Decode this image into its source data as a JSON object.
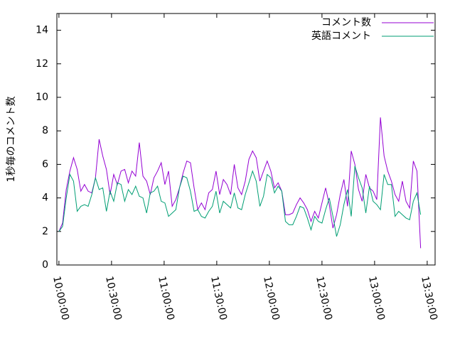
{
  "chart_data": {
    "type": "line",
    "y_label": "1秒毎のコメント数",
    "x": [
      36000,
      36125,
      36250,
      36375,
      36500,
      36625,
      36750,
      36875,
      37000,
      37125,
      37250,
      37375,
      37500,
      37625,
      37750,
      37875,
      38000,
      38125,
      38250,
      38375,
      38500,
      38625,
      38750,
      38875,
      39000,
      39125,
      39250,
      39375,
      39500,
      39625,
      39750,
      39875,
      40000,
      40125,
      40250,
      40375,
      40500,
      40625,
      40750,
      40875,
      41000,
      41125,
      41250,
      41375,
      41500,
      41625,
      41750,
      41875,
      42000,
      42125,
      42250,
      42375,
      42500,
      42625,
      42750,
      42875,
      43000,
      43125,
      43250,
      43375,
      43500,
      43625,
      43750,
      43875,
      44000,
      44125,
      44250,
      44375,
      44500,
      44625,
      44750,
      44875,
      45000,
      45125,
      45250,
      45375,
      45500,
      45625,
      45750,
      45875,
      46000,
      46125,
      46250,
      46375,
      46500,
      46625,
      46750,
      46875,
      47000,
      47125,
      47250,
      47375,
      47500,
      47625,
      47750,
      47875,
      48000,
      48125,
      48250,
      48375
    ],
    "series": [
      {
        "name": "コメント数",
        "color": "#9400d3",
        "values": [
          2.0,
          2.5,
          4.5,
          5.6,
          6.4,
          5.7,
          4.4,
          4.8,
          4.4,
          4.3,
          5.2,
          7.5,
          6.5,
          5.7,
          4.2,
          5.4,
          4.8,
          5.6,
          5.7,
          4.9,
          5.6,
          5.3,
          7.3,
          5.3,
          5.0,
          4.2,
          5.2,
          5.6,
          6.1,
          4.8,
          5.6,
          3.5,
          3.9,
          4.6,
          5.5,
          6.2,
          6.1,
          4.6,
          3.3,
          3.7,
          3.3,
          4.3,
          4.5,
          5.6,
          4.2,
          5.1,
          4.8,
          4.2,
          6.0,
          4.6,
          4.2,
          5.0,
          6.3,
          6.8,
          6.4,
          5.0,
          5.6,
          6.2,
          5.6,
          4.6,
          4.9,
          4.4,
          3.0,
          3.0,
          3.1,
          3.6,
          4.0,
          3.7,
          3.3,
          2.6,
          3.2,
          2.8,
          3.7,
          4.6,
          3.6,
          2.2,
          3.0,
          4.2,
          5.1,
          3.5,
          6.8,
          6.0,
          4.5,
          3.8,
          5.4,
          4.6,
          4.4,
          3.9,
          8.8,
          6.5,
          5.6,
          5.0,
          4.2,
          3.8,
          5.0,
          3.8,
          3.4,
          6.2,
          5.6,
          1.0
        ]
      },
      {
        "name": "英語コメント",
        "color": "#009e73",
        "values": [
          2.0,
          2.3,
          4.0,
          5.4,
          5.0,
          3.2,
          3.5,
          3.6,
          3.5,
          4.2,
          5.2,
          4.5,
          4.6,
          3.2,
          4.4,
          3.8,
          4.9,
          4.8,
          3.8,
          4.5,
          4.2,
          4.7,
          4.1,
          4.0,
          3.1,
          4.3,
          4.4,
          4.7,
          3.8,
          3.7,
          2.9,
          3.1,
          3.3,
          4.6,
          5.3,
          5.2,
          4.4,
          3.2,
          3.3,
          2.9,
          2.8,
          3.2,
          3.5,
          4.4,
          3.1,
          3.8,
          3.6,
          3.4,
          4.3,
          3.4,
          3.3,
          4.2,
          4.9,
          5.6,
          5.0,
          3.5,
          4.1,
          5.4,
          5.2,
          4.3,
          4.7,
          4.4,
          2.6,
          2.4,
          2.4,
          2.9,
          3.5,
          3.4,
          2.8,
          2.1,
          2.9,
          2.6,
          2.5,
          3.3,
          4.0,
          2.9,
          1.7,
          2.4,
          3.6,
          4.5,
          2.9,
          5.9,
          5.2,
          4.6,
          3.1,
          4.7,
          3.8,
          3.6,
          3.3,
          5.4,
          4.8,
          4.8,
          2.9,
          3.2,
          3.0,
          2.8,
          2.7,
          3.8,
          4.3,
          3.0
        ]
      }
    ],
    "xlim": [
      35930,
      48870
    ],
    "xticks": [
      {
        "value": 36000,
        "label": "10:00:00"
      },
      {
        "value": 37800,
        "label": "10:30:00"
      },
      {
        "value": 39600,
        "label": "11:00:00"
      },
      {
        "value": 41400,
        "label": "11:30:00"
      },
      {
        "value": 43200,
        "label": "12:00:00"
      },
      {
        "value": 45000,
        "label": "12:30:00"
      },
      {
        "value": 46800,
        "label": "13:00:00"
      },
      {
        "value": 48600,
        "label": "13:30:00"
      }
    ],
    "ylim": [
      0,
      15
    ],
    "yticks": [
      0,
      2,
      4,
      6,
      8,
      10,
      12,
      14
    ],
    "legend": "top-right"
  }
}
